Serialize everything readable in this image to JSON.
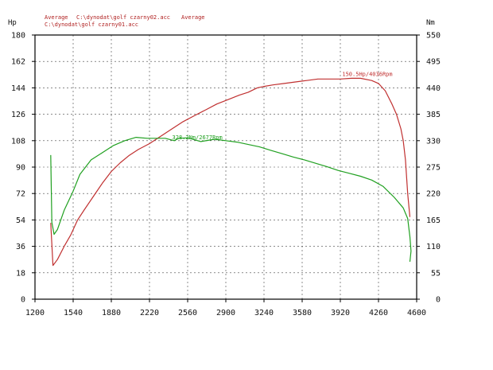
{
  "chart_data": {
    "type": "line",
    "header": {
      "line1_average_a": "Average",
      "line1_file": "C:\\dynodat\\golf czarny02.acc",
      "line1_average_b": "Average",
      "line2_file": "C:\\dynodat\\golf czarny01.acc"
    },
    "x_ticks": [
      "1200",
      "1540",
      "1880",
      "2220",
      "2560",
      "2900",
      "3240",
      "3580",
      "3920",
      "4260",
      "4600"
    ],
    "xlim": [
      1200,
      4600
    ],
    "left_axis": {
      "unit": "Hp",
      "ticks": [
        "0",
        "18",
        "36",
        "54",
        "72",
        "90",
        "108",
        "126",
        "144",
        "162",
        "180"
      ],
      "ylim": [
        0,
        180
      ]
    },
    "right_axis": {
      "unit": "Nm",
      "ticks": [
        "0",
        "55",
        "110",
        "165",
        "220",
        "275",
        "330",
        "385",
        "440",
        "495",
        "550"
      ],
      "ylim": [
        0,
        550
      ]
    },
    "grid": true,
    "colors": {
      "power": "#c03030",
      "torque": "#20a020",
      "header_text": "#b02020"
    },
    "series": [
      {
        "key": "power",
        "axis": "left",
        "points": [
          [
            1340,
            52
          ],
          [
            1360,
            23
          ],
          [
            1400,
            27
          ],
          [
            1460,
            36
          ],
          [
            1520,
            44
          ],
          [
            1580,
            54
          ],
          [
            1640,
            61
          ],
          [
            1720,
            70
          ],
          [
            1800,
            79
          ],
          [
            1880,
            87
          ],
          [
            1960,
            93
          ],
          [
            2040,
            98
          ],
          [
            2120,
            102
          ],
          [
            2220,
            106
          ],
          [
            2320,
            111
          ],
          [
            2420,
            116
          ],
          [
            2520,
            121
          ],
          [
            2620,
            125
          ],
          [
            2720,
            129
          ],
          [
            2820,
            133
          ],
          [
            2920,
            136
          ],
          [
            3020,
            139
          ],
          [
            3100,
            141
          ],
          [
            3180,
            144
          ],
          [
            3240,
            145
          ],
          [
            3320,
            146
          ],
          [
            3420,
            147
          ],
          [
            3520,
            148
          ],
          [
            3620,
            149
          ],
          [
            3720,
            150
          ],
          [
            3820,
            150
          ],
          [
            3920,
            150
          ],
          [
            4020,
            150.5
          ],
          [
            4100,
            150.5
          ],
          [
            4200,
            149
          ],
          [
            4260,
            147
          ],
          [
            4320,
            142
          ],
          [
            4380,
            133
          ],
          [
            4420,
            126
          ],
          [
            4460,
            116
          ],
          [
            4480,
            108
          ],
          [
            4500,
            95
          ],
          [
            4520,
            72
          ],
          [
            4540,
            56
          ]
        ],
        "annotation": {
          "text": "150.5Hp/4036Rpm",
          "x": 4036,
          "y": 150.5
        }
      },
      {
        "key": "torque",
        "axis": "right",
        "points": [
          [
            1340,
            300
          ],
          [
            1350,
            160
          ],
          [
            1370,
            135
          ],
          [
            1400,
            145
          ],
          [
            1460,
            185
          ],
          [
            1540,
            225
          ],
          [
            1600,
            260
          ],
          [
            1700,
            290
          ],
          [
            1800,
            305
          ],
          [
            1900,
            320
          ],
          [
            2000,
            330
          ],
          [
            2100,
            337
          ],
          [
            2200,
            335
          ],
          [
            2280,
            335
          ],
          [
            2360,
            335
          ],
          [
            2440,
            330
          ],
          [
            2480,
            335
          ],
          [
            2560,
            336
          ],
          [
            2677,
            328.2
          ],
          [
            2800,
            333
          ],
          [
            2900,
            330
          ],
          [
            3000,
            327
          ],
          [
            3100,
            322
          ],
          [
            3200,
            317
          ],
          [
            3300,
            310
          ],
          [
            3400,
            303
          ],
          [
            3500,
            296
          ],
          [
            3600,
            290
          ],
          [
            3700,
            283
          ],
          [
            3800,
            276
          ],
          [
            3900,
            268
          ],
          [
            4000,
            262
          ],
          [
            4100,
            256
          ],
          [
            4200,
            248
          ],
          [
            4300,
            235
          ],
          [
            4400,
            212
          ],
          [
            4480,
            190
          ],
          [
            4520,
            168
          ],
          [
            4540,
            130
          ],
          [
            4550,
            100
          ],
          [
            4540,
            78
          ]
        ],
        "annotation": {
          "text": "328.2Nm/2677Rpm",
          "x": 2677,
          "y": 328.2
        }
      }
    ]
  }
}
